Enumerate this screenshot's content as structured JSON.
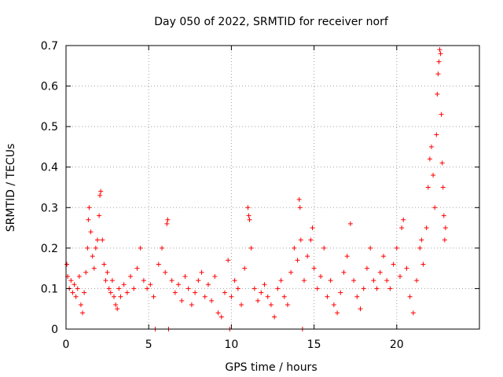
{
  "chart_data": {
    "type": "scatter",
    "title": "Day 050 of 2022, SRMTID for receiver norf",
    "xlabel": "GPS time / hours",
    "ylabel": "SRMTID / TECUs",
    "xlim": [
      0,
      25
    ],
    "ylim": [
      0,
      0.7
    ],
    "x_ticks": [
      0,
      5,
      10,
      15,
      20
    ],
    "x_tick_labels": [
      "0",
      "5",
      "10",
      "15",
      "20"
    ],
    "y_ticks": [
      0,
      0.1,
      0.2,
      0.3,
      0.4,
      0.5,
      0.6,
      0.7
    ],
    "y_tick_labels": [
      "0",
      "0.1",
      "0.2",
      "0.3",
      "0.4",
      "0.5",
      "0.6",
      "0.7"
    ],
    "grid": true,
    "marker": "+",
    "marker_color": "#ff0000",
    "series": [
      {
        "name": "SRMTID",
        "points": [
          [
            0.05,
            0.16
          ],
          [
            0.1,
            0.13
          ],
          [
            0.2,
            0.1
          ],
          [
            0.3,
            0.12
          ],
          [
            0.4,
            0.09
          ],
          [
            0.5,
            0.11
          ],
          [
            0.6,
            0.08
          ],
          [
            0.7,
            0.1
          ],
          [
            0.8,
            0.13
          ],
          [
            0.9,
            0.06
          ],
          [
            1.0,
            0.04
          ],
          [
            1.1,
            0.09
          ],
          [
            1.2,
            0.14
          ],
          [
            1.3,
            0.2
          ],
          [
            1.35,
            0.27
          ],
          [
            1.4,
            0.3
          ],
          [
            1.5,
            0.24
          ],
          [
            1.6,
            0.18
          ],
          [
            1.7,
            0.15
          ],
          [
            1.8,
            0.2
          ],
          [
            1.9,
            0.22
          ],
          [
            2.0,
            0.28
          ],
          [
            2.05,
            0.33
          ],
          [
            2.1,
            0.34
          ],
          [
            2.2,
            0.22
          ],
          [
            2.3,
            0.16
          ],
          [
            2.4,
            0.12
          ],
          [
            2.5,
            0.14
          ],
          [
            2.6,
            0.1
          ],
          [
            2.7,
            0.09
          ],
          [
            2.8,
            0.12
          ],
          [
            2.9,
            0.08
          ],
          [
            3.0,
            0.06
          ],
          [
            3.1,
            0.05
          ],
          [
            3.2,
            0.1
          ],
          [
            3.3,
            0.08
          ],
          [
            3.5,
            0.11
          ],
          [
            3.7,
            0.09
          ],
          [
            3.9,
            0.13
          ],
          [
            4.1,
            0.1
          ],
          [
            4.3,
            0.15
          ],
          [
            4.5,
            0.2
          ],
          [
            4.7,
            0.12
          ],
          [
            4.9,
            0.1
          ],
          [
            5.1,
            0.11
          ],
          [
            5.3,
            0.08
          ],
          [
            5.4,
            0.0
          ],
          [
            5.6,
            0.16
          ],
          [
            5.8,
            0.2
          ],
          [
            6.0,
            0.14
          ],
          [
            6.1,
            0.26
          ],
          [
            6.15,
            0.27
          ],
          [
            6.2,
            0.0
          ],
          [
            6.4,
            0.12
          ],
          [
            6.6,
            0.09
          ],
          [
            6.8,
            0.11
          ],
          [
            7.0,
            0.07
          ],
          [
            7.2,
            0.13
          ],
          [
            7.4,
            0.1
          ],
          [
            7.6,
            0.06
          ],
          [
            7.8,
            0.09
          ],
          [
            8.0,
            0.12
          ],
          [
            8.2,
            0.14
          ],
          [
            8.4,
            0.08
          ],
          [
            8.6,
            0.11
          ],
          [
            8.8,
            0.07
          ],
          [
            9.0,
            0.13
          ],
          [
            9.2,
            0.04
          ],
          [
            9.4,
            0.03
          ],
          [
            9.6,
            0.09
          ],
          [
            9.8,
            0.17
          ],
          [
            9.9,
            0.0
          ],
          [
            10.0,
            0.08
          ],
          [
            10.2,
            0.12
          ],
          [
            10.4,
            0.1
          ],
          [
            10.6,
            0.06
          ],
          [
            10.8,
            0.15
          ],
          [
            11.0,
            0.3
          ],
          [
            11.05,
            0.28
          ],
          [
            11.1,
            0.27
          ],
          [
            11.2,
            0.2
          ],
          [
            11.4,
            0.1
          ],
          [
            11.6,
            0.07
          ],
          [
            11.8,
            0.09
          ],
          [
            12.0,
            0.11
          ],
          [
            12.2,
            0.08
          ],
          [
            12.4,
            0.06
          ],
          [
            12.6,
            0.03
          ],
          [
            12.8,
            0.1
          ],
          [
            13.0,
            0.12
          ],
          [
            13.2,
            0.08
          ],
          [
            13.4,
            0.06
          ],
          [
            13.6,
            0.14
          ],
          [
            13.8,
            0.2
          ],
          [
            14.0,
            0.17
          ],
          [
            14.1,
            0.32
          ],
          [
            14.15,
            0.3
          ],
          [
            14.2,
            0.22
          ],
          [
            14.3,
            0.0
          ],
          [
            14.4,
            0.12
          ],
          [
            14.6,
            0.18
          ],
          [
            14.8,
            0.22
          ],
          [
            14.9,
            0.25
          ],
          [
            15.0,
            0.15
          ],
          [
            15.2,
            0.1
          ],
          [
            15.4,
            0.13
          ],
          [
            15.6,
            0.2
          ],
          [
            15.8,
            0.08
          ],
          [
            16.0,
            0.12
          ],
          [
            16.2,
            0.06
          ],
          [
            16.4,
            0.04
          ],
          [
            16.6,
            0.09
          ],
          [
            16.8,
            0.14
          ],
          [
            17.0,
            0.18
          ],
          [
            17.2,
            0.26
          ],
          [
            17.4,
            0.12
          ],
          [
            17.6,
            0.08
          ],
          [
            17.8,
            0.05
          ],
          [
            18.0,
            0.1
          ],
          [
            18.2,
            0.15
          ],
          [
            18.4,
            0.2
          ],
          [
            18.6,
            0.12
          ],
          [
            18.8,
            0.1
          ],
          [
            19.0,
            0.14
          ],
          [
            19.2,
            0.18
          ],
          [
            19.4,
            0.12
          ],
          [
            19.6,
            0.1
          ],
          [
            19.8,
            0.16
          ],
          [
            20.0,
            0.2
          ],
          [
            20.2,
            0.13
          ],
          [
            20.3,
            0.25
          ],
          [
            20.4,
            0.27
          ],
          [
            20.6,
            0.15
          ],
          [
            20.8,
            0.08
          ],
          [
            21.0,
            0.04
          ],
          [
            21.2,
            0.12
          ],
          [
            21.4,
            0.2
          ],
          [
            21.5,
            0.22
          ],
          [
            21.6,
            0.16
          ],
          [
            21.8,
            0.25
          ],
          [
            21.9,
            0.35
          ],
          [
            22.0,
            0.42
          ],
          [
            22.1,
            0.45
          ],
          [
            22.2,
            0.38
          ],
          [
            22.3,
            0.3
          ],
          [
            22.4,
            0.48
          ],
          [
            22.45,
            0.58
          ],
          [
            22.5,
            0.63
          ],
          [
            22.55,
            0.66
          ],
          [
            22.6,
            0.69
          ],
          [
            22.65,
            0.68
          ],
          [
            22.7,
            0.53
          ],
          [
            22.75,
            0.41
          ],
          [
            22.8,
            0.35
          ],
          [
            22.85,
            0.28
          ],
          [
            22.9,
            0.22
          ],
          [
            22.95,
            0.25
          ]
        ]
      }
    ]
  }
}
